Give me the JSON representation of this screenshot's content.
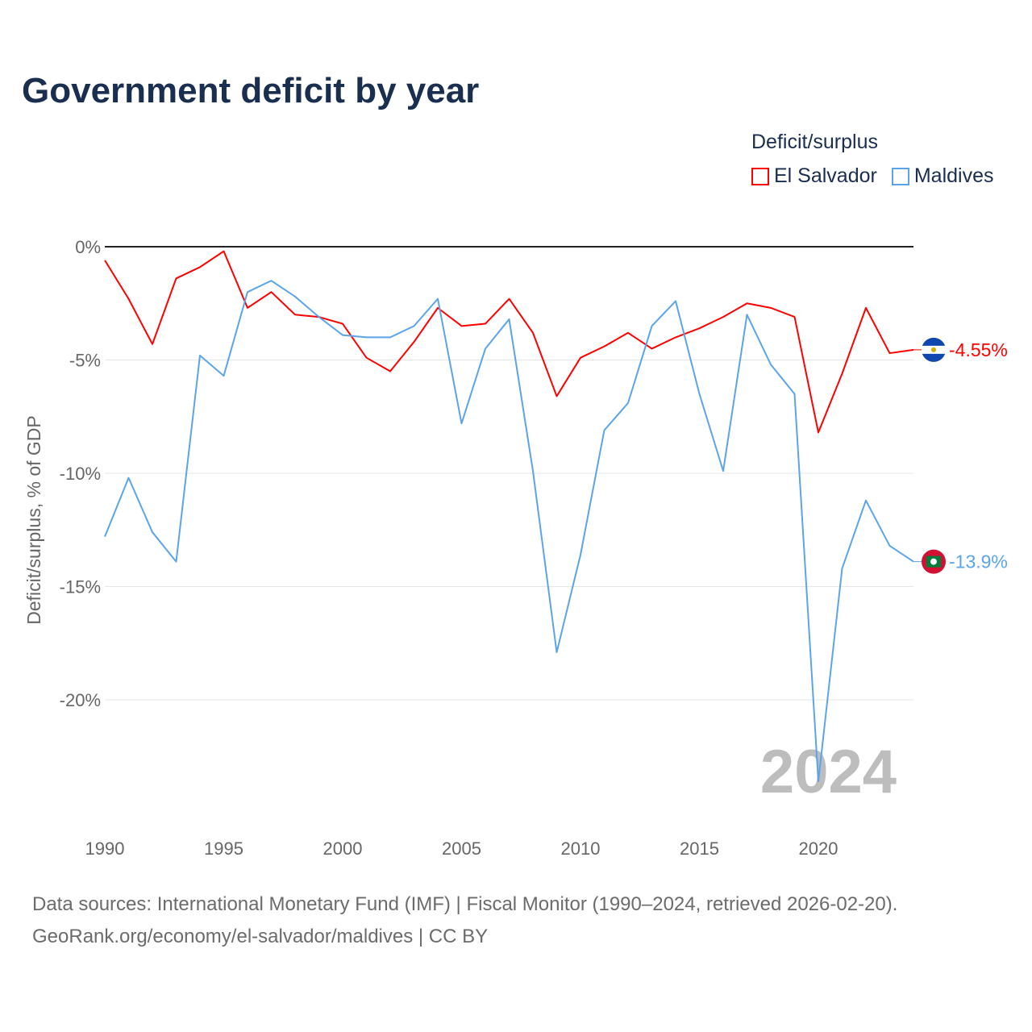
{
  "title": "Government deficit by year",
  "legend_title": "Deficit/surplus",
  "source_line1": "Data sources: International Monetary Fund (IMF) | Fiscal Monitor (1990–2024, retrieved 2026-02-20).",
  "source_line2": "GeoRank.org/economy/el-salvador/maldives | CC BY",
  "chart_data": {
    "type": "line",
    "title": "Government deficit by year",
    "xlabel": "",
    "ylabel": "Deficit/surplus, % of GDP",
    "ylim": [
      -25,
      0
    ],
    "xlim": [
      1990,
      2024
    ],
    "yticks": [
      {
        "v": 0,
        "label": "0%"
      },
      {
        "v": -5,
        "label": "-5%"
      },
      {
        "v": -10,
        "label": "-10%"
      },
      {
        "v": -15,
        "label": "-15%"
      },
      {
        "v": -20,
        "label": "-20%"
      }
    ],
    "xticks": [
      {
        "v": 1990,
        "label": "1990"
      },
      {
        "v": 1995,
        "label": "1995"
      },
      {
        "v": 2000,
        "label": "2000"
      },
      {
        "v": 2005,
        "label": "2005"
      },
      {
        "v": 2010,
        "label": "2010"
      },
      {
        "v": 2015,
        "label": "2015"
      },
      {
        "v": 2020,
        "label": "2020"
      }
    ],
    "year_label": "2024",
    "legend_placement": "top-right",
    "grid": true,
    "x": [
      1990,
      1991,
      1992,
      1993,
      1994,
      1995,
      1996,
      1997,
      1998,
      1999,
      2000,
      2001,
      2002,
      2003,
      2004,
      2005,
      2006,
      2007,
      2008,
      2009,
      2010,
      2011,
      2012,
      2013,
      2014,
      2015,
      2016,
      2017,
      2018,
      2019,
      2020,
      2021,
      2022,
      2023,
      2024
    ],
    "series": [
      {
        "name": "El Salvador",
        "color": "#ff0000",
        "end_label": "-4.55%",
        "values": [
          -0.6,
          -2.3,
          -4.3,
          -1.4,
          -0.9,
          -0.2,
          -2.7,
          -2.0,
          -3.0,
          -3.1,
          -3.4,
          -4.9,
          -5.5,
          -4.2,
          -2.7,
          -3.5,
          -3.4,
          -2.3,
          -3.8,
          -6.6,
          -4.9,
          -4.4,
          -3.8,
          -4.5,
          -4.0,
          -3.6,
          -3.1,
          -2.5,
          -2.7,
          -3.1,
          -8.2,
          -5.6,
          -2.7,
          -4.7,
          -4.55
        ]
      },
      {
        "name": "Maldives",
        "color": "#5ba4ea",
        "end_label": "-13.9%",
        "values": [
          -12.8,
          -10.2,
          -12.6,
          -13.9,
          -4.8,
          -5.7,
          -2.0,
          -1.5,
          -2.2,
          -3.1,
          -3.9,
          -4.0,
          -4.0,
          -3.5,
          -2.3,
          -7.8,
          -4.5,
          -3.2,
          -9.9,
          -17.9,
          -13.6,
          -8.1,
          -6.9,
          -3.5,
          -2.4,
          -6.5,
          -9.9,
          -3.0,
          -5.2,
          -6.5,
          -23.6,
          -14.2,
          -11.2,
          -13.2,
          -13.9
        ]
      }
    ]
  }
}
